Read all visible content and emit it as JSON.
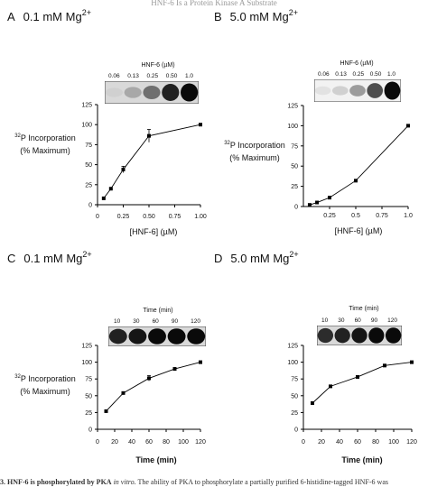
{
  "header_text": "HNF-6 Is a Protein Kinase A Substrate",
  "caption": {
    "label": "3. HNF-6 is phosphorylated by PKA",
    "italic": "in vitro.",
    "text": "The ability of PKA to phosphorylate a partially purified 6-histidine-tagged HNF-6 was"
  },
  "chart_data": [
    {
      "panel": "A",
      "title": "0.1 mM Mg",
      "title_sup": "2+",
      "type": "line",
      "x": [
        0.06,
        0.13,
        0.25,
        0.5,
        1.0
      ],
      "y": [
        8,
        20,
        44,
        86,
        100
      ],
      "err": [
        0,
        0,
        4,
        8,
        0
      ],
      "xlabel": "[HNF-6] (µM)",
      "ylabel_line1_sup": "32",
      "ylabel_line1": "P Incorporation",
      "ylabel_line2": "(% Maximum)",
      "xlim": [
        0,
        1.0
      ],
      "ylim": [
        0,
        125
      ],
      "xticks": [
        "0",
        "0.25",
        "0.50",
        "0.75",
        "1.00"
      ],
      "xtick_values": [
        0,
        0.25,
        0.5,
        0.75,
        1.0
      ],
      "yticks": [
        0,
        25,
        50,
        75,
        100,
        125
      ],
      "blot_header": "HNF-6 (µM)",
      "blot_lanes": [
        "0.06",
        "0.13",
        "0.25",
        "0.50",
        "1.0"
      ],
      "blot_intensity": [
        0.12,
        0.3,
        0.55,
        0.9,
        1.0
      ]
    },
    {
      "panel": "B",
      "title": "5.0 mM Mg",
      "title_sup": "2+",
      "type": "line",
      "x": [
        0.06,
        0.13,
        0.25,
        0.5,
        1.0
      ],
      "y": [
        2,
        5,
        11,
        32,
        100
      ],
      "err": [
        0,
        0,
        0,
        0,
        0
      ],
      "xlabel": "[HNF-6] (µM)",
      "ylabel_line1_sup": "32",
      "ylabel_line1": "P Incorporation",
      "ylabel_line2": "(% Maximum)",
      "xlim": [
        0,
        1.0
      ],
      "ylim": [
        0,
        125
      ],
      "xticks": [
        "0.25",
        "0.5",
        "0.75",
        "1.0"
      ],
      "xtick_values": [
        0.25,
        0.5,
        0.75,
        1.0
      ],
      "yticks": [
        0,
        25,
        50,
        75,
        100,
        125
      ],
      "blot_header": "HNF-6 (µM)",
      "blot_lanes": [
        "0.06",
        "0.13",
        "0.25",
        "0.50",
        "1.0"
      ],
      "blot_intensity": [
        0.04,
        0.12,
        0.35,
        0.7,
        1.0
      ]
    },
    {
      "panel": "C",
      "title": "0.1 mM Mg",
      "title_sup": "2+",
      "type": "line",
      "x": [
        10,
        30,
        60,
        90,
        120
      ],
      "y": [
        27,
        54,
        76,
        90,
        100
      ],
      "err": [
        0,
        0,
        4,
        0,
        0
      ],
      "xlabel": "Time (min)",
      "ylabel_line1_sup": "32",
      "ylabel_line1": "P Incorporation",
      "ylabel_line2": "(% Maximum)",
      "xlim": [
        0,
        120
      ],
      "ylim": [
        0,
        125
      ],
      "xticks": [
        "0",
        "20",
        "40",
        "60",
        "80",
        "100",
        "120"
      ],
      "xtick_values": [
        0,
        20,
        40,
        60,
        80,
        100,
        120
      ],
      "yticks": [
        0,
        25,
        50,
        75,
        100,
        125
      ],
      "blot_header": "Time (min)",
      "blot_lanes": [
        "10",
        "30",
        "60",
        "90",
        "120"
      ],
      "blot_intensity": [
        0.9,
        0.95,
        1.0,
        1.0,
        1.0
      ]
    },
    {
      "panel": "D",
      "title": "5.0 mM Mg",
      "title_sup": "2+",
      "type": "line",
      "x": [
        10,
        30,
        60,
        90,
        120
      ],
      "y": [
        39,
        64,
        78,
        95,
        100
      ],
      "err": [
        0,
        0,
        0,
        0,
        0
      ],
      "xlabel": "Time (min)",
      "ylabel_line1_sup": "",
      "ylabel_line1": "",
      "ylabel_line2": "",
      "xlim": [
        0,
        120
      ],
      "ylim": [
        0,
        125
      ],
      "xticks": [
        "0",
        "20",
        "40",
        "60",
        "80",
        "100",
        "120"
      ],
      "xtick_values": [
        0,
        20,
        40,
        60,
        80,
        100,
        120
      ],
      "yticks": [
        0,
        25,
        50,
        75,
        100,
        125
      ],
      "blot_header": "Time (min)",
      "blot_lanes": [
        "10",
        "30",
        "60",
        "90",
        "120"
      ],
      "blot_intensity": [
        0.85,
        0.9,
        0.95,
        1.0,
        1.0
      ]
    }
  ]
}
